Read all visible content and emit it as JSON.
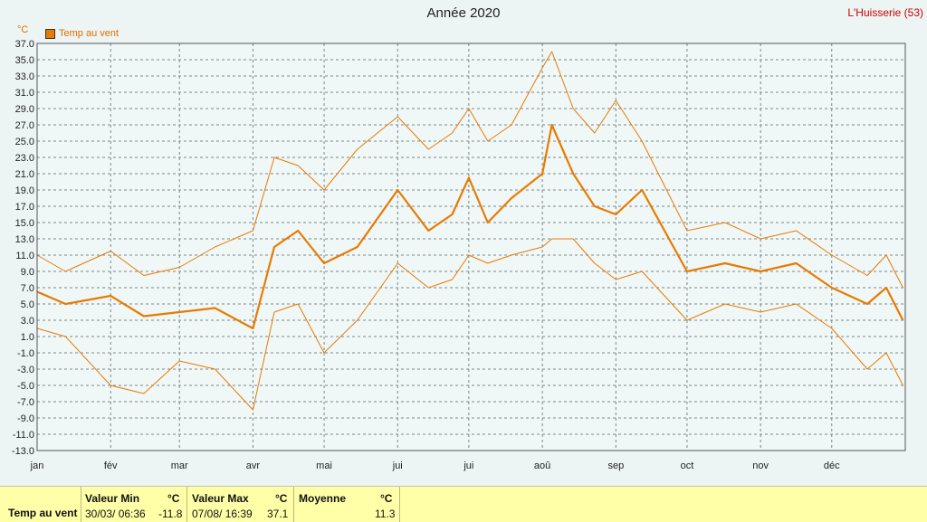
{
  "header": {
    "title": "Année 2020",
    "station": "L'Huisserie (53)"
  },
  "chart_data": {
    "type": "line",
    "title": "Année 2020",
    "unit": "°C",
    "ylim": [
      -13,
      37
    ],
    "yticks": [
      "37.0",
      "35.0",
      "33.0",
      "31.0",
      "29.0",
      "27.0",
      "25.0",
      "23.0",
      "21.0",
      "19.0",
      "17.0",
      "15.0",
      "13.0",
      "11.0",
      "9.0",
      "7.0",
      "5.0",
      "3.0",
      "1.0",
      "-1.0",
      "-3.0",
      "-5.0",
      "-7.0",
      "-9.0",
      "-11.0",
      "-13.0"
    ],
    "months": [
      "jan",
      "fév",
      "mar",
      "avr",
      "mai",
      "jui",
      "jui",
      "aoû",
      "sep",
      "oct",
      "nov",
      "déc"
    ],
    "grid": true,
    "legend_position": "top-left",
    "series_color": "#e87b00",
    "series": [
      {
        "name": "Temp au vent",
        "role": "mean",
        "x_days": [
          0,
          12,
          31,
          45,
          60,
          75,
          91,
          100,
          110,
          121,
          135,
          152,
          165,
          175,
          182,
          190,
          200,
          213,
          217,
          226,
          235,
          244,
          255,
          274,
          290,
          305,
          320,
          335,
          350,
          358,
          365
        ],
        "values": [
          6.5,
          5.0,
          6.0,
          3.5,
          4.0,
          4.5,
          2.0,
          12.0,
          14.0,
          10.0,
          12.0,
          19.0,
          14.0,
          16.0,
          20.5,
          15.0,
          18.0,
          21.0,
          27.0,
          21.0,
          17.0,
          16.0,
          19.0,
          9.0,
          10.0,
          9.0,
          10.0,
          7.0,
          5.0,
          7.0,
          3.0
        ]
      },
      {
        "name": "Max",
        "role": "max",
        "x_days": [
          0,
          12,
          31,
          45,
          60,
          75,
          91,
          100,
          110,
          121,
          135,
          152,
          165,
          175,
          182,
          190,
          200,
          213,
          217,
          226,
          235,
          244,
          255,
          274,
          290,
          305,
          320,
          335,
          350,
          358,
          365
        ],
        "values": [
          11.0,
          9.0,
          11.5,
          8.5,
          9.5,
          12.0,
          14.0,
          23.0,
          22.0,
          19.0,
          24.0,
          28.0,
          24.0,
          26.0,
          29.0,
          25.0,
          27.0,
          34.0,
          36.0,
          29.0,
          26.0,
          30.0,
          25.0,
          14.0,
          15.0,
          13.0,
          14.0,
          11.0,
          8.5,
          11.0,
          7.0
        ]
      },
      {
        "name": "Min",
        "role": "min",
        "x_days": [
          0,
          12,
          31,
          45,
          60,
          75,
          91,
          100,
          110,
          121,
          135,
          152,
          165,
          175,
          182,
          190,
          200,
          213,
          217,
          226,
          235,
          244,
          255,
          274,
          290,
          305,
          320,
          335,
          350,
          358,
          365
        ],
        "values": [
          2.0,
          1.0,
          -5.0,
          -6.0,
          -2.0,
          -3.0,
          -8.0,
          4.0,
          5.0,
          -1.0,
          3.0,
          10.0,
          7.0,
          8.0,
          11.0,
          10.0,
          11.0,
          12.0,
          13.0,
          13.0,
          10.0,
          8.0,
          9.0,
          3.0,
          5.0,
          4.0,
          5.0,
          2.0,
          -3.0,
          -1.0,
          -5.0
        ]
      }
    ]
  },
  "stats": {
    "series_label": "Temp au vent",
    "min_header": "Valeur Min",
    "max_header": "Valeur Max",
    "mean_header": "Moyenne",
    "unit": "°C",
    "min_time": "30/03/ 06:36",
    "min_value": "-11.8",
    "max_time": "07/08/ 16:39",
    "max_value": "37.1",
    "mean_value": "11.3"
  }
}
